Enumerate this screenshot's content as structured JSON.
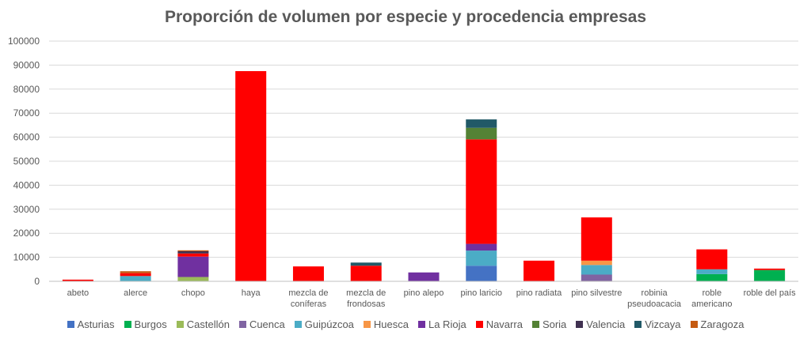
{
  "chart_data": {
    "type": "bar",
    "stacked": true,
    "title": "Proporción de volumen por especie y procedencia empresas",
    "xlabel": "",
    "ylabel": "",
    "ylim": [
      0,
      100000
    ],
    "yticks": [
      0,
      10000,
      20000,
      30000,
      40000,
      50000,
      60000,
      70000,
      80000,
      90000,
      100000
    ],
    "grid": true,
    "legend_position": "bottom",
    "categories": [
      [
        "abeto"
      ],
      [
        "alerce"
      ],
      [
        "chopo"
      ],
      [
        "haya"
      ],
      [
        "mezcla de",
        "coníferas"
      ],
      [
        "mezcla de",
        "frondosas"
      ],
      [
        "pino alepo"
      ],
      [
        "pino laricio"
      ],
      [
        "pino radiata"
      ],
      [
        "pino silvestre"
      ],
      [
        "robinia",
        "pseudoacacia"
      ],
      [
        "roble",
        "americano"
      ],
      [
        "roble del país"
      ]
    ],
    "series": [
      {
        "name": "Asturias",
        "color": "#4472C4",
        "values": [
          0,
          0,
          0,
          0,
          0,
          0,
          0,
          6500,
          0,
          0,
          0,
          0,
          0
        ]
      },
      {
        "name": "Burgos",
        "color": "#00B050",
        "values": [
          0,
          0,
          0,
          0,
          0,
          0,
          0,
          0,
          0,
          0,
          0,
          3000,
          4700
        ]
      },
      {
        "name": "Castellón",
        "color": "#9BBB59",
        "values": [
          0,
          0,
          1800,
          0,
          0,
          0,
          0,
          0,
          0,
          0,
          0,
          0,
          0
        ]
      },
      {
        "name": "Cuenca",
        "color": "#8064A2",
        "values": [
          0,
          0,
          0,
          0,
          0,
          0,
          0,
          0,
          0,
          2800,
          0,
          0,
          0
        ]
      },
      {
        "name": "Guipúzcoa",
        "color": "#4BACC6",
        "values": [
          0,
          2200,
          0,
          0,
          0,
          0,
          0,
          6300,
          0,
          4000,
          0,
          2000,
          0
        ]
      },
      {
        "name": "Huesca",
        "color": "#F79646",
        "values": [
          0,
          0,
          0,
          0,
          0,
          0,
          0,
          0,
          0,
          1800,
          0,
          0,
          0
        ]
      },
      {
        "name": "La Rioja",
        "color": "#7030A0",
        "values": [
          0,
          0,
          8500,
          0,
          0,
          0,
          3700,
          2800,
          0,
          0,
          0,
          0,
          0
        ]
      },
      {
        "name": "Navarra",
        "color": "#FF0000",
        "values": [
          700,
          1200,
          1300,
          87500,
          6200,
          6500,
          0,
          43500,
          8600,
          18000,
          0,
          8300,
          600
        ]
      },
      {
        "name": "Soria",
        "color": "#548235",
        "values": [
          0,
          0,
          0,
          0,
          0,
          0,
          0,
          4800,
          0,
          0,
          0,
          0,
          0
        ]
      },
      {
        "name": "Valencia",
        "color": "#403151",
        "values": [
          0,
          0,
          900,
          0,
          0,
          0,
          0,
          0,
          0,
          0,
          0,
          0,
          0
        ]
      },
      {
        "name": "Vizcaya",
        "color": "#215967",
        "values": [
          0,
          0,
          0,
          0,
          0,
          1300,
          0,
          3500,
          0,
          0,
          0,
          0,
          0
        ]
      },
      {
        "name": "Zaragoza",
        "color": "#C55A11",
        "values": [
          0,
          800,
          400,
          0,
          0,
          0,
          0,
          0,
          0,
          0,
          0,
          0,
          0
        ]
      }
    ]
  }
}
